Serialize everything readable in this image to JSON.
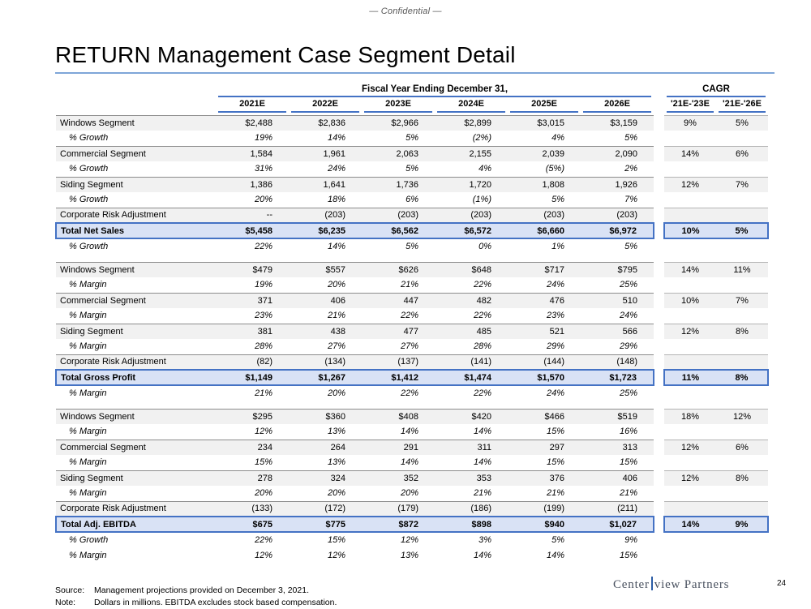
{
  "page": {
    "confidential": "— Confidential —",
    "title": "RETURN Management Case Segment Detail",
    "page_number": "24"
  },
  "colors": {
    "accent_blue": "#4472C4",
    "title_rule_blue": "#7EA6D8",
    "total_row_bg": "#D9E2F5",
    "shaded_row_bg": "#F1F1F1",
    "logo_navy": "#4A5260",
    "logo_bar_blue": "#2B5CA5"
  },
  "table": {
    "fiscal_header": "Fiscal Year Ending December 31,",
    "cagr_header": "CAGR",
    "year_columns": [
      "2021E",
      "2022E",
      "2023E",
      "2024E",
      "2025E",
      "2026E"
    ],
    "cagr_columns": [
      "'21E-'23E",
      "'21E-'26E"
    ],
    "rows": [
      {
        "label": "Windows Segment",
        "style": "segment",
        "values": [
          "$2,488",
          "$2,836",
          "$2,966",
          "$2,899",
          "$3,015",
          "$3,159"
        ],
        "cagr": [
          "9%",
          "5%"
        ]
      },
      {
        "label": "% Growth",
        "style": "pct",
        "values": [
          "19%",
          "14%",
          "5%",
          "(2%)",
          "4%",
          "5%"
        ],
        "cagr": [
          "",
          ""
        ]
      },
      {
        "label": "Commercial Segment",
        "style": "segment",
        "values": [
          "1,584",
          "1,961",
          "2,063",
          "2,155",
          "2,039",
          "2,090"
        ],
        "cagr": [
          "14%",
          "6%"
        ]
      },
      {
        "label": "% Growth",
        "style": "pct",
        "values": [
          "31%",
          "24%",
          "5%",
          "4%",
          "(5%)",
          "2%"
        ],
        "cagr": [
          "",
          ""
        ]
      },
      {
        "label": "Siding Segment",
        "style": "segment",
        "values": [
          "1,386",
          "1,641",
          "1,736",
          "1,720",
          "1,808",
          "1,926"
        ],
        "cagr": [
          "12%",
          "7%"
        ]
      },
      {
        "label": "% Growth",
        "style": "pct",
        "values": [
          "20%",
          "18%",
          "6%",
          "(1%)",
          "5%",
          "7%"
        ],
        "cagr": [
          "",
          ""
        ]
      },
      {
        "label": "Corporate Risk Adjustment",
        "style": "segment",
        "values": [
          "--",
          "(203)",
          "(203)",
          "(203)",
          "(203)",
          "(203)"
        ],
        "cagr": [
          "",
          ""
        ]
      },
      {
        "label": "Total Net Sales",
        "style": "total",
        "values": [
          "$5,458",
          "$6,235",
          "$6,562",
          "$6,572",
          "$6,660",
          "$6,972"
        ],
        "cagr": [
          "10%",
          "5%"
        ]
      },
      {
        "label": "% Growth",
        "style": "pct",
        "values": [
          "22%",
          "14%",
          "5%",
          "0%",
          "1%",
          "5%"
        ],
        "cagr": [
          "",
          ""
        ]
      },
      {
        "style": "spacer"
      },
      {
        "label": "Windows Segment",
        "style": "segment",
        "values": [
          "$479",
          "$557",
          "$626",
          "$648",
          "$717",
          "$795"
        ],
        "cagr": [
          "14%",
          "11%"
        ]
      },
      {
        "label": "% Margin",
        "style": "pct",
        "values": [
          "19%",
          "20%",
          "21%",
          "22%",
          "24%",
          "25%"
        ],
        "cagr": [
          "",
          ""
        ]
      },
      {
        "label": "Commercial Segment",
        "style": "segment",
        "values": [
          "371",
          "406",
          "447",
          "482",
          "476",
          "510"
        ],
        "cagr": [
          "10%",
          "7%"
        ]
      },
      {
        "label": "% Margin",
        "style": "pct",
        "values": [
          "23%",
          "21%",
          "22%",
          "22%",
          "23%",
          "24%"
        ],
        "cagr": [
          "",
          ""
        ]
      },
      {
        "label": "Siding Segment",
        "style": "segment",
        "values": [
          "381",
          "438",
          "477",
          "485",
          "521",
          "566"
        ],
        "cagr": [
          "12%",
          "8%"
        ]
      },
      {
        "label": "% Margin",
        "style": "pct",
        "values": [
          "28%",
          "27%",
          "27%",
          "28%",
          "29%",
          "29%"
        ],
        "cagr": [
          "",
          ""
        ]
      },
      {
        "label": "Corporate Risk Adjustment",
        "style": "segment",
        "values": [
          "(82)",
          "(134)",
          "(137)",
          "(141)",
          "(144)",
          "(148)"
        ],
        "cagr": [
          "",
          ""
        ]
      },
      {
        "label": "Total Gross Profit",
        "style": "total",
        "values": [
          "$1,149",
          "$1,267",
          "$1,412",
          "$1,474",
          "$1,570",
          "$1,723"
        ],
        "cagr": [
          "11%",
          "8%"
        ]
      },
      {
        "label": "% Margin",
        "style": "pct",
        "values": [
          "21%",
          "20%",
          "22%",
          "22%",
          "24%",
          "25%"
        ],
        "cagr": [
          "",
          ""
        ]
      },
      {
        "style": "spacer"
      },
      {
        "label": "Windows Segment",
        "style": "segment",
        "values": [
          "$295",
          "$360",
          "$408",
          "$420",
          "$466",
          "$519"
        ],
        "cagr": [
          "18%",
          "12%"
        ]
      },
      {
        "label": "% Margin",
        "style": "pct",
        "values": [
          "12%",
          "13%",
          "14%",
          "14%",
          "15%",
          "16%"
        ],
        "cagr": [
          "",
          ""
        ]
      },
      {
        "label": "Commercial Segment",
        "style": "segment",
        "values": [
          "234",
          "264",
          "291",
          "311",
          "297",
          "313"
        ],
        "cagr": [
          "12%",
          "6%"
        ]
      },
      {
        "label": "% Margin",
        "style": "pct",
        "values": [
          "15%",
          "13%",
          "14%",
          "14%",
          "15%",
          "15%"
        ],
        "cagr": [
          "",
          ""
        ]
      },
      {
        "label": "Siding Segment",
        "style": "segment",
        "values": [
          "278",
          "324",
          "352",
          "353",
          "376",
          "406"
        ],
        "cagr": [
          "12%",
          "8%"
        ]
      },
      {
        "label": "% Margin",
        "style": "pct",
        "values": [
          "20%",
          "20%",
          "20%",
          "21%",
          "21%",
          "21%"
        ],
        "cagr": [
          "",
          ""
        ]
      },
      {
        "label": "Corporate Risk Adjustment",
        "style": "segment",
        "values": [
          "(133)",
          "(172)",
          "(179)",
          "(186)",
          "(199)",
          "(211)"
        ],
        "cagr": [
          "",
          ""
        ]
      },
      {
        "label": "Total Adj. EBITDA",
        "style": "total",
        "values": [
          "$675",
          "$775",
          "$872",
          "$898",
          "$940",
          "$1,027"
        ],
        "cagr": [
          "14%",
          "9%"
        ]
      },
      {
        "label": "% Growth",
        "style": "pct",
        "values": [
          "22%",
          "15%",
          "12%",
          "3%",
          "5%",
          "9%"
        ],
        "cagr": [
          "",
          ""
        ]
      },
      {
        "label": "% Margin",
        "style": "pct",
        "values": [
          "12%",
          "12%",
          "13%",
          "14%",
          "14%",
          "15%"
        ],
        "cagr": [
          "",
          ""
        ]
      }
    ]
  },
  "footer": {
    "source_label": "Source:",
    "source_text": "Management projections provided on December 3, 2021.",
    "note_label": "Note:",
    "note_text": "Dollars in millions. EBITDA excludes stock based compensation.",
    "logo_part1": "Center",
    "logo_part2": "view Partners"
  }
}
